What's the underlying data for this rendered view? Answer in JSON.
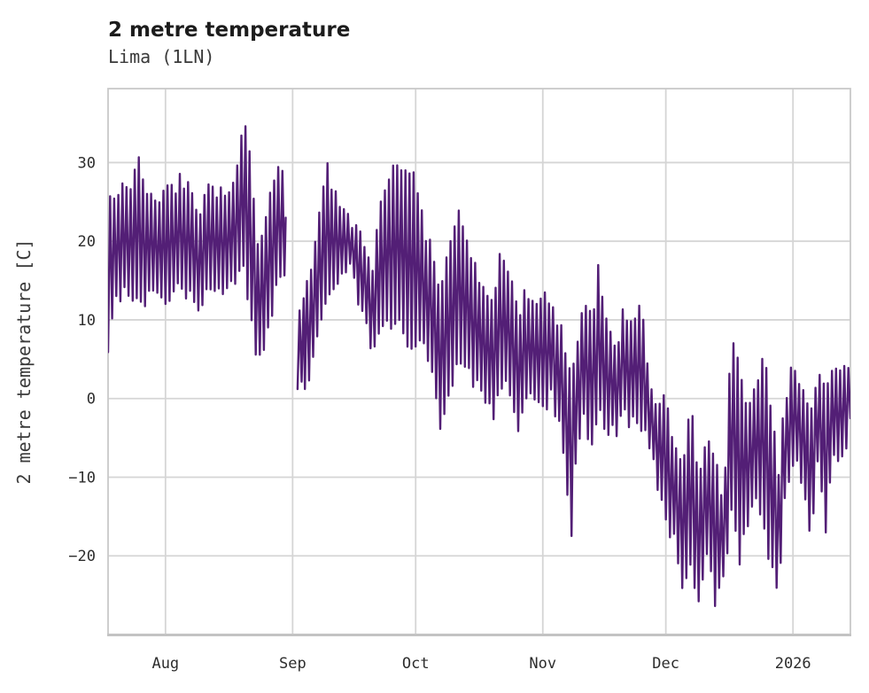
{
  "chart_data": {
    "type": "line",
    "title": "2 metre temperature",
    "subtitle": "Lima (1LN)",
    "ylabel": "2 metre temperature [C]",
    "xlabel": "",
    "grid": true,
    "legend": "none",
    "background_color": "#ffffff",
    "line_color": "#531f76",
    "grid_color": "#d5d5d5",
    "frame_color": "#c9c9c9",
    "bottom_spine_color": "#c3c3c3",
    "title_color": "#1c1c1c",
    "subtitle_color": "#3a3a3a",
    "tick_color": "#2d2d2d",
    "ylim": [
      -30,
      39.4
    ],
    "yticks": [
      {
        "label": "30",
        "value": 30
      },
      {
        "label": "20",
        "value": 20
      },
      {
        "label": "10",
        "value": 10
      },
      {
        "label": "0",
        "value": 0
      },
      {
        "label": "−10",
        "value": -10
      },
      {
        "label": "−20",
        "value": -20
      }
    ],
    "x_total_days": 181,
    "x_axis_note": "day 0 = left edge (mid-July 2025), day 181 = right edge (mid-January 2026)",
    "x_ticks": [
      {
        "label": "Aug",
        "day": 14
      },
      {
        "label": "Sep",
        "day": 45
      },
      {
        "label": "Oct",
        "day": 75
      },
      {
        "label": "Nov",
        "day": 106
      },
      {
        "label": "Dec",
        "day": 136
      },
      {
        "label": "2026",
        "day": 167
      }
    ],
    "series": [
      {
        "name": "2 metre temperature",
        "units": "C",
        "observed_extremes": {
          "max": 35.8,
          "max_day": 33,
          "min": -26.8,
          "min_day": 144
        },
        "clamp": [
          -26.8,
          35.8
        ],
        "noise": {
          "seed": 20250718,
          "amplitude": 2.4,
          "points_per_day": 2
        },
        "segments_format": "[day, daily_min_C, daily_max_C]; gap between segments = missing data around Sep 1",
        "segments": [
          [
            [
              0,
              6.5,
              24
            ],
            [
              2,
              13,
              27
            ],
            [
              5,
              13,
              26
            ],
            [
              7.5,
              14,
              31.4
            ],
            [
              9,
              12,
              25
            ],
            [
              11,
              14,
              26
            ],
            [
              14,
              13,
              26
            ],
            [
              17,
              14,
              27.5
            ],
            [
              20,
              13,
              28
            ],
            [
              22,
              12,
              24
            ],
            [
              25,
              15,
              27
            ],
            [
              28,
              14,
              26.5
            ],
            [
              31,
              15,
              28
            ],
            [
              33,
              16,
              35.8
            ],
            [
              35,
              9,
              29
            ],
            [
              37,
              4.5,
              18
            ],
            [
              39,
              9,
              26
            ],
            [
              41,
              14,
              29.5
            ],
            [
              43.3,
              16,
              30
            ]
          ],
          [
            [
              46.2,
              2,
              11
            ],
            [
              48,
              1.5,
              13
            ],
            [
              50,
              5,
              18
            ],
            [
              53,
              12,
              29.5
            ],
            [
              55,
              14,
              27
            ],
            [
              57,
              15,
              25
            ],
            [
              59,
              16,
              22
            ],
            [
              61,
              13,
              22
            ],
            [
              63,
              9,
              19
            ],
            [
              64.5,
              5,
              16
            ],
            [
              66,
              8,
              24
            ],
            [
              69,
              10,
              28
            ],
            [
              71,
              9,
              29.8
            ],
            [
              73,
              7,
              30
            ],
            [
              75,
              6,
              28
            ],
            [
              77,
              8,
              22
            ],
            [
              79,
              3,
              18
            ],
            [
              81,
              -4.5,
              12
            ],
            [
              83,
              1,
              20
            ],
            [
              85,
              4,
              23.8
            ],
            [
              88,
              3,
              18
            ],
            [
              90,
              2,
              16
            ],
            [
              92,
              -1,
              13
            ],
            [
              94,
              -2.5,
              12
            ],
            [
              96,
              2,
              19.6
            ],
            [
              98,
              1,
              15
            ],
            [
              100,
              -3,
              11
            ],
            [
              102,
              -1,
              13.5
            ],
            [
              104,
              0,
              12
            ],
            [
              106,
              -1,
              13
            ],
            [
              108,
              0,
              11
            ],
            [
              110,
              -3,
              9
            ],
            [
              113,
              -17.9,
              4
            ],
            [
              114.5,
              -5,
              8
            ],
            [
              116,
              -2,
              13.6
            ],
            [
              118,
              -6,
              9
            ],
            [
              119.5,
              -1,
              16.8
            ],
            [
              122,
              -5,
              9
            ],
            [
              124,
              -4,
              7
            ],
            [
              126,
              -2,
              11.2
            ],
            [
              128,
              -3,
              9
            ],
            [
              130,
              -4,
              11.4
            ],
            [
              132,
              -6,
              3
            ],
            [
              134,
              -11,
              -2
            ],
            [
              136,
              -15.5,
              1
            ],
            [
              138,
              -18,
              -7
            ],
            [
              140,
              -23.9,
              -9
            ],
            [
              142,
              -21,
              0.8
            ],
            [
              144,
              -26.8,
              -11
            ],
            [
              146,
              -20,
              -3.5
            ],
            [
              148,
              -25.8,
              -8
            ],
            [
              150,
              -23.5,
              -14
            ],
            [
              152,
              -14,
              8.4
            ],
            [
              154,
              -20,
              4.8
            ],
            [
              156,
              -16,
              -3
            ],
            [
              158,
              -12,
              3
            ],
            [
              160,
              -17.5,
              4.7
            ],
            [
              163.5,
              -25.3,
              -9
            ],
            [
              165,
              -12,
              0
            ],
            [
              166.5,
              -9,
              3.4
            ],
            [
              168,
              -8,
              2
            ],
            [
              170,
              -14,
              1
            ],
            [
              171.5,
              -19.5,
              -2
            ],
            [
              173,
              -8,
              4
            ],
            [
              175,
              -15.9,
              2
            ],
            [
              176.5,
              -6.5,
              4.6
            ],
            [
              178,
              -9,
              3
            ],
            [
              179.5,
              -5,
              5.3
            ],
            [
              181,
              -7,
              2
            ]
          ]
        ]
      }
    ]
  }
}
